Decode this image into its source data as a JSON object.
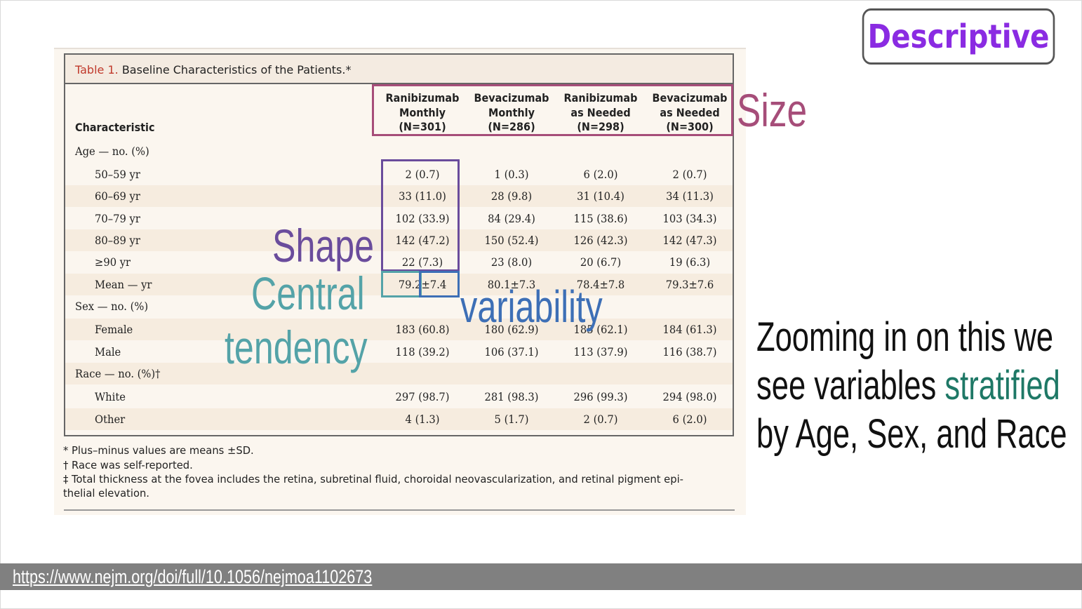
{
  "badge": "Descriptive",
  "table": {
    "title_num": "Table 1.",
    "title_text": " Baseline Characteristics of the Patients.*",
    "char_header": "Characteristic",
    "columns": [
      "Ranibizumab\nMonthly\n(N=301)",
      "Bevacizumab\nMonthly\n(N=286)",
      "Ranibizumab\nas Needed\n(N=298)",
      "Bevacizumab\nas Needed\n(N=300)"
    ],
    "rows": [
      {
        "label": "Age — no. (%)",
        "indent": false,
        "values": [
          "",
          "",
          "",
          ""
        ]
      },
      {
        "label": "50–59 yr",
        "indent": true,
        "values": [
          "2 (0.7)",
          "1 (0.3)",
          "6 (2.0)",
          "2 (0.7)"
        ]
      },
      {
        "label": "60–69 yr",
        "indent": true,
        "values": [
          "33 (11.0)",
          "28 (9.8)",
          "31 (10.4)",
          "34 (11.3)"
        ]
      },
      {
        "label": "70–79 yr",
        "indent": true,
        "values": [
          "102 (33.9)",
          "84 (29.4)",
          "115 (38.6)",
          "103 (34.3)"
        ]
      },
      {
        "label": "80–89 yr",
        "indent": true,
        "values": [
          "142 (47.2)",
          "150 (52.4)",
          "126 (42.3)",
          "142 (47.3)"
        ]
      },
      {
        "label": "≥90 yr",
        "indent": true,
        "values": [
          "22 (7.3)",
          "23 (8.0)",
          "20 (6.7)",
          "19 (6.3)"
        ]
      },
      {
        "label": "Mean — yr",
        "indent": true,
        "values": [
          "79.2±7.4",
          "80.1±7.3",
          "78.4±7.8",
          "79.3±7.6"
        ]
      },
      {
        "label": "Sex — no. (%)",
        "indent": false,
        "values": [
          "",
          "",
          "",
          ""
        ]
      },
      {
        "label": "Female",
        "indent": true,
        "values": [
          "183 (60.8)",
          "180 (62.9)",
          "185 (62.1)",
          "184 (61.3)"
        ]
      },
      {
        "label": "Male",
        "indent": true,
        "values": [
          "118 (39.2)",
          "106 (37.1)",
          "113 (37.9)",
          "116 (38.7)"
        ]
      },
      {
        "label": "Race — no. (%)†",
        "indent": false,
        "values": [
          "",
          "",
          "",
          ""
        ]
      },
      {
        "label": "White",
        "indent": true,
        "values": [
          "297 (98.7)",
          "281 (98.3)",
          "296 (99.3)",
          "294 (98.0)"
        ]
      },
      {
        "label": "Other",
        "indent": true,
        "values": [
          "4 (1.3)",
          "5 (1.7)",
          "2 (0.7)",
          "6 (2.0)"
        ]
      }
    ],
    "footnotes": [
      "* Plus–minus values are means ±SD.",
      "† Race was self-reported.",
      "‡ Total thickness at the fovea includes the retina, subretinal fluid, choroidal neovascularization, and retinal pigment epi-",
      "   thelial elevation."
    ]
  },
  "overlays": {
    "size": "Size",
    "shape": "Shape",
    "central_1": "Central",
    "central_2": "tendency",
    "variability": "variability"
  },
  "note": {
    "part1": "Zooming in on this we see variables ",
    "highlight": "stratified",
    "part2": " by Age, Sex, and Race"
  },
  "url": "https://www.nejm.org/doi/full/10.1056/nejmoa1102673"
}
